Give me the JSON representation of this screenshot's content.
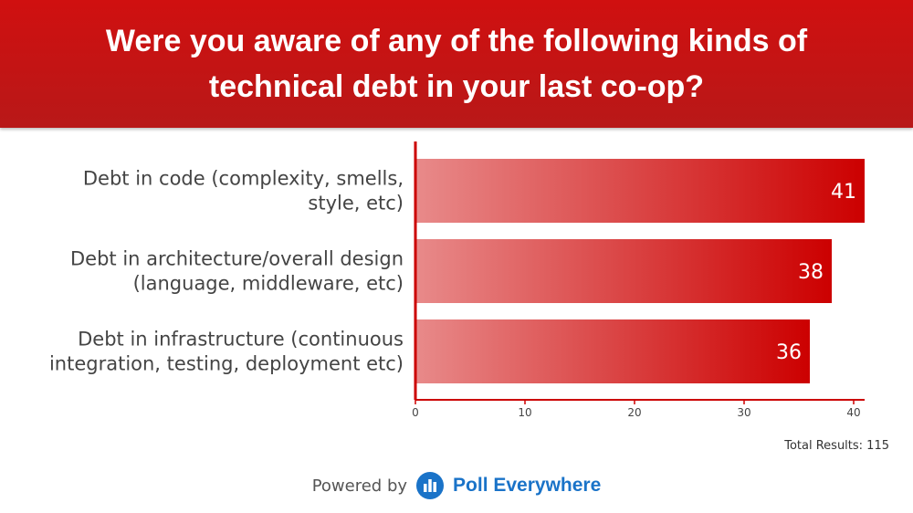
{
  "header": {
    "title": "Were you aware of any of the following kinds of technical debt in your last co-op?"
  },
  "chart_data": {
    "type": "bar",
    "orientation": "horizontal",
    "categories": [
      [
        "Debt in code (complexity, smells,",
        "style, etc)"
      ],
      [
        "Debt in architecture/overall design",
        "(language, middleware, etc)"
      ],
      [
        "Debt in infrastructure (continuous",
        "integration, testing, deployment etc)"
      ]
    ],
    "values": [
      41,
      38,
      36
    ],
    "xlim": [
      0,
      41
    ],
    "xticks": [
      0,
      10,
      20,
      30,
      40
    ],
    "grid": false,
    "data_labels": true,
    "bar_color_start": "#e88a8a",
    "bar_color_end": "#cc0000",
    "axis_color": "#cc0000"
  },
  "footer": {
    "total_results": "Total Results: 115",
    "powered_by": "Powered by",
    "brand": "Poll Everywhere",
    "brand_color": "#1a73c8",
    "logo_icon": "poll-everywhere-logo-icon"
  }
}
